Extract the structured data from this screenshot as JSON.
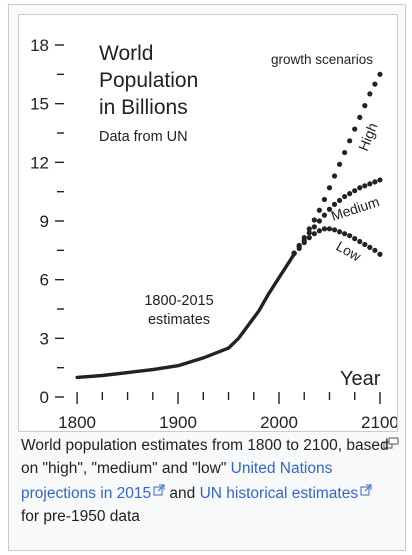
{
  "chart_data": {
    "type": "line",
    "title_lines": [
      "World",
      "Population",
      "in Billions"
    ],
    "source_note": "Data from UN",
    "xlabel": "Year",
    "xlim": [
      1790,
      2105
    ],
    "ylim": [
      0,
      18
    ],
    "x_ticks": [
      1800,
      1900,
      2000,
      2100
    ],
    "y_ticks": [
      0,
      3,
      6,
      9,
      12,
      15,
      18
    ],
    "historical_label_lines": [
      "1800-2015",
      "estimates"
    ],
    "scenarios_title": "growth scenarios",
    "historical": {
      "x": [
        1800,
        1825,
        1850,
        1875,
        1900,
        1925,
        1950,
        1960,
        1970,
        1980,
        1990,
        2000,
        2010,
        2015
      ],
      "values": [
        1.0,
        1.1,
        1.25,
        1.4,
        1.6,
        2.0,
        2.5,
        3.0,
        3.7,
        4.4,
        5.3,
        6.1,
        6.9,
        7.3
      ]
    },
    "series": [
      {
        "name": "High",
        "x": [
          2015,
          2020,
          2025,
          2030,
          2035,
          2040,
          2045,
          2050,
          2055,
          2060,
          2065,
          2070,
          2075,
          2080,
          2085,
          2090,
          2095,
          2100
        ],
        "values": [
          7.35,
          7.75,
          8.15,
          8.6,
          9.05,
          9.55,
          10.1,
          10.7,
          11.3,
          11.9,
          12.5,
          13.1,
          13.7,
          14.3,
          14.9,
          15.5,
          16.0,
          16.5
        ]
      },
      {
        "name": "Medium",
        "x": [
          2015,
          2020,
          2025,
          2030,
          2035,
          2040,
          2045,
          2050,
          2055,
          2060,
          2065,
          2070,
          2075,
          2080,
          2085,
          2090,
          2095,
          2100
        ],
        "values": [
          7.35,
          7.7,
          8.0,
          8.4,
          8.7,
          9.0,
          9.3,
          9.6,
          9.85,
          10.05,
          10.25,
          10.4,
          10.55,
          10.7,
          10.8,
          10.9,
          11.0,
          11.1
        ]
      },
      {
        "name": "Low",
        "x": [
          2015,
          2020,
          2025,
          2030,
          2035,
          2040,
          2045,
          2050,
          2055,
          2060,
          2065,
          2070,
          2075,
          2080,
          2085,
          2090,
          2095,
          2100
        ],
        "values": [
          7.35,
          7.6,
          7.9,
          8.15,
          8.35,
          8.5,
          8.6,
          8.6,
          8.55,
          8.45,
          8.35,
          8.25,
          8.1,
          7.95,
          7.8,
          7.65,
          7.5,
          7.3
        ]
      }
    ]
  },
  "caption": {
    "text_1": "World population estimates from 1800 to 2100, based on \"high\", \"medium\" and \"low\" ",
    "link_1": "United Nations projections in 2015",
    "text_2": " and ",
    "link_2": "UN historical estimates",
    "text_3": " for pre-1950 data",
    "link_color": "#3366cc"
  },
  "icons": {
    "external": "external-link-icon",
    "enlarge": "enlarge-icon"
  }
}
